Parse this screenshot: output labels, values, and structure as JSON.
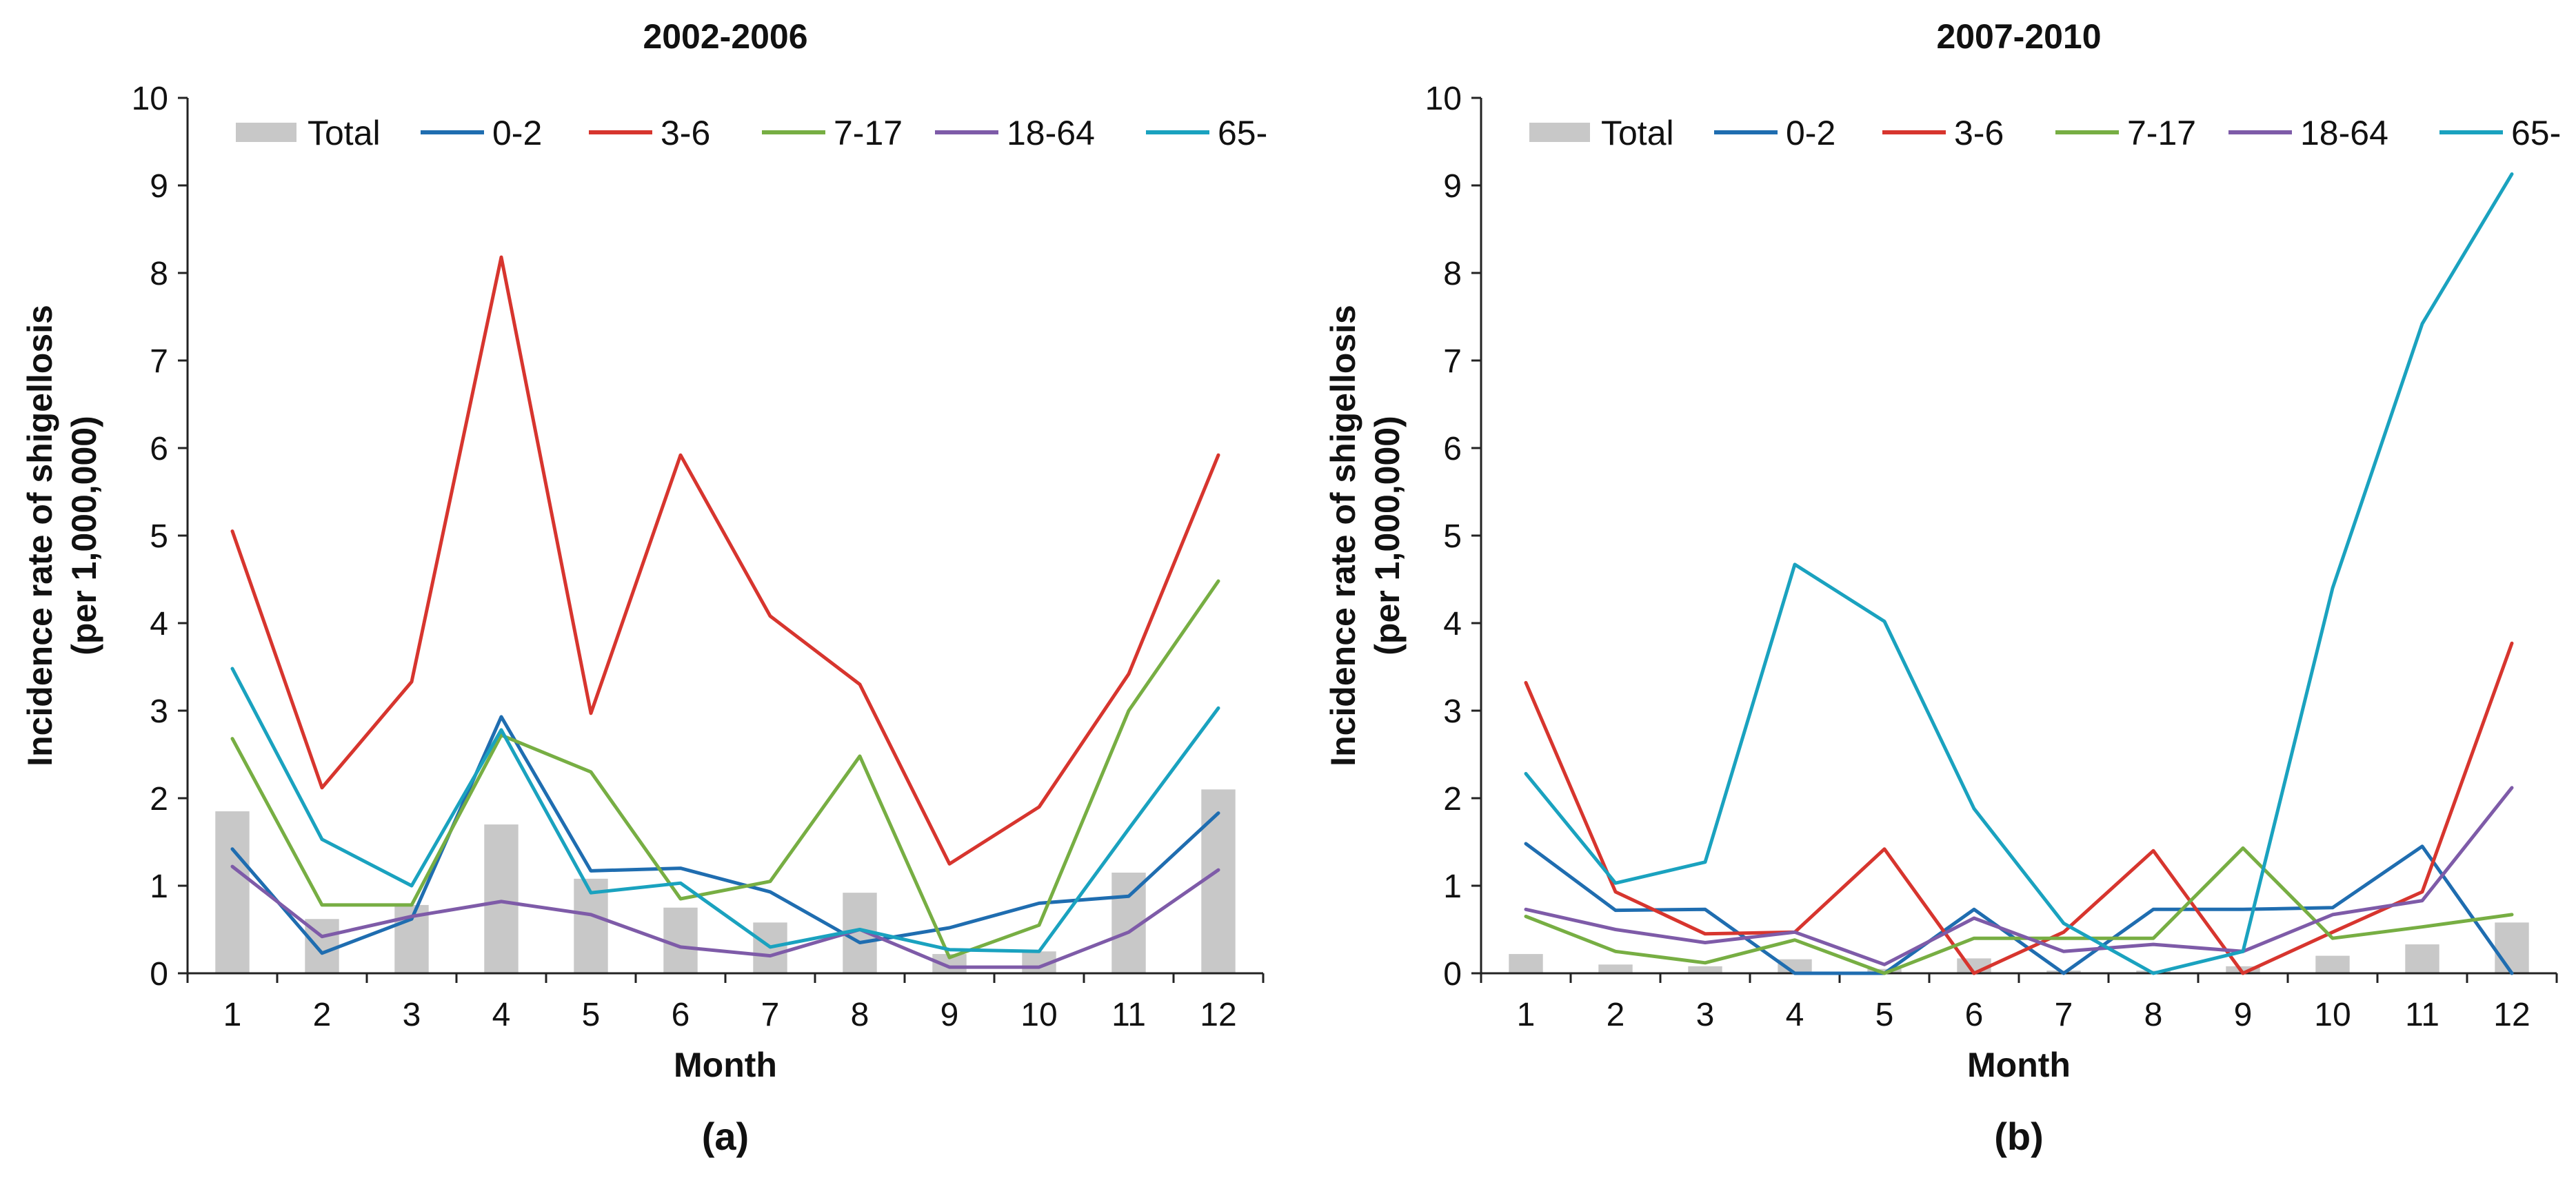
{
  "chart_data": [
    {
      "type": "bar+line",
      "title": "2002-2006",
      "panel_label": "(a)",
      "xlabel": "Month",
      "ylabel": [
        "Incidence rate of shigellosis",
        "(per 1,000,000)"
      ],
      "ylim": [
        0,
        10
      ],
      "yticks": [
        "0",
        "1",
        "2",
        "3",
        "4",
        "5",
        "6",
        "7",
        "8",
        "9",
        "10"
      ],
      "categories": [
        "1",
        "2",
        "3",
        "4",
        "5",
        "6",
        "7",
        "8",
        "9",
        "10",
        "11",
        "12"
      ],
      "legend_position": "top",
      "bars": {
        "name": "Total",
        "color": "#c8c8c8",
        "values": [
          1.85,
          0.62,
          0.78,
          1.7,
          1.08,
          0.75,
          0.58,
          0.92,
          0.22,
          0.25,
          1.15,
          2.1
        ]
      },
      "series": [
        {
          "name": "0-2",
          "color": "#1f6db0",
          "values": [
            1.42,
            0.23,
            0.62,
            2.93,
            1.17,
            1.2,
            0.93,
            0.35,
            0.52,
            0.8,
            0.88,
            1.83
          ]
        },
        {
          "name": "3-6",
          "color": "#d7352e",
          "values": [
            5.05,
            2.12,
            3.33,
            8.18,
            2.97,
            5.92,
            4.08,
            3.3,
            1.25,
            1.9,
            3.42,
            5.92
          ]
        },
        {
          "name": "7-17",
          "color": "#77ae43",
          "values": [
            2.68,
            0.78,
            0.78,
            2.72,
            2.3,
            0.85,
            1.05,
            2.48,
            0.18,
            0.55,
            3.0,
            4.48
          ]
        },
        {
          "name": "18-64",
          "color": "#7e5ba8",
          "values": [
            1.22,
            0.42,
            0.65,
            0.82,
            0.67,
            0.3,
            0.2,
            0.5,
            0.07,
            0.07,
            0.47,
            1.18
          ]
        },
        {
          "name": "65-",
          "color": "#1aa2bf",
          "values": [
            3.48,
            1.53,
            1.0,
            2.78,
            0.92,
            1.03,
            0.3,
            0.5,
            0.27,
            0.25,
            1.65,
            3.03
          ]
        }
      ]
    },
    {
      "type": "bar+line",
      "title": "2007-2010",
      "panel_label": "(b)",
      "xlabel": "Month",
      "ylabel": [
        "Incidence rate of shigellosis",
        "(per 1,000,000)"
      ],
      "ylim": [
        0,
        10
      ],
      "yticks": [
        "0",
        "1",
        "2",
        "3",
        "4",
        "5",
        "6",
        "7",
        "8",
        "9",
        "10"
      ],
      "categories": [
        "1",
        "2",
        "3",
        "4",
        "5",
        "6",
        "7",
        "8",
        "9",
        "10",
        "11",
        "12"
      ],
      "legend_position": "top",
      "bars": {
        "name": "Total",
        "color": "#c8c8c8",
        "values": [
          0.22,
          0.1,
          0.08,
          0.16,
          0.05,
          0.17,
          0.03,
          0.03,
          0.08,
          0.2,
          0.33,
          0.58
        ]
      },
      "series": [
        {
          "name": "0-2",
          "color": "#1f6db0",
          "values": [
            1.48,
            0.72,
            0.73,
            0.0,
            0.0,
            0.73,
            0.0,
            0.73,
            0.73,
            0.75,
            1.45,
            0.0
          ]
        },
        {
          "name": "3-6",
          "color": "#d7352e",
          "values": [
            3.32,
            0.93,
            0.45,
            0.47,
            1.42,
            0.0,
            0.47,
            1.4,
            0.0,
            0.47,
            0.93,
            3.77
          ]
        },
        {
          "name": "7-17",
          "color": "#77ae43",
          "values": [
            0.65,
            0.25,
            0.12,
            0.38,
            0.0,
            0.4,
            0.4,
            0.4,
            1.43,
            0.4,
            0.53,
            0.67
          ]
        },
        {
          "name": "18-64",
          "color": "#7e5ba8",
          "values": [
            0.73,
            0.5,
            0.35,
            0.47,
            0.1,
            0.63,
            0.25,
            0.33,
            0.25,
            0.67,
            0.83,
            2.12
          ]
        },
        {
          "name": "65-",
          "color": "#1aa2bf",
          "values": [
            2.28,
            1.03,
            1.27,
            4.67,
            4.02,
            1.88,
            0.57,
            0.0,
            0.25,
            4.4,
            7.42,
            9.13
          ]
        }
      ]
    }
  ]
}
